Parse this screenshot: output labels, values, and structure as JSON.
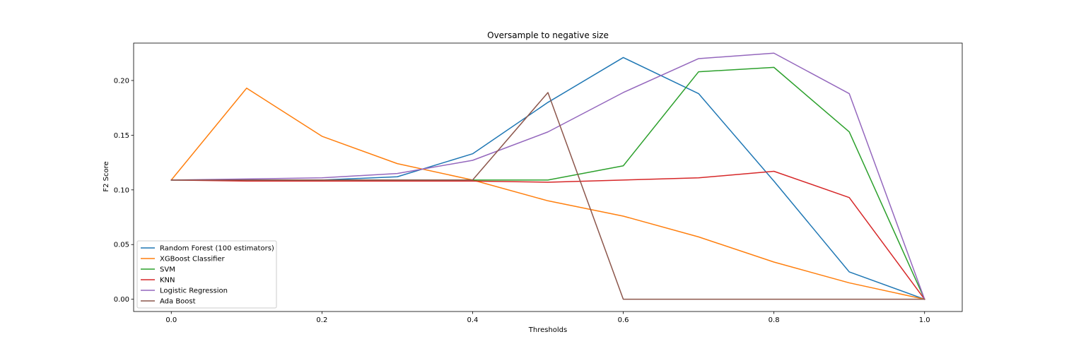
{
  "chart_data": {
    "type": "line",
    "title": "Oversample to negative size",
    "xlabel": "Thresholds",
    "ylabel": "F2 Score",
    "xlim": [
      -0.05,
      1.05
    ],
    "ylim": [
      -0.0112,
      0.2342
    ],
    "xticks": [
      0.0,
      0.2,
      0.4,
      0.6,
      0.8,
      1.0
    ],
    "xtick_labels": [
      "0.0",
      "0.2",
      "0.4",
      "0.6",
      "0.8",
      "1.0"
    ],
    "yticks": [
      0.0,
      0.05,
      0.1,
      0.15,
      0.2
    ],
    "ytick_labels": [
      "0.00",
      "0.05",
      "0.10",
      "0.15",
      "0.20"
    ],
    "grid": false,
    "legend_position": "bottom-left",
    "x": [
      0.0,
      0.1,
      0.2,
      0.3,
      0.4,
      0.5,
      0.6,
      0.7,
      0.8,
      0.9,
      1.0
    ],
    "series": [
      {
        "name": "Random Forest (100 estimators)",
        "color": "#1f77b4",
        "values": [
          0.109,
          0.109,
          0.109,
          0.112,
          0.133,
          0.18,
          0.221,
          0.188,
          0.108,
          0.025,
          0.0
        ]
      },
      {
        "name": "XGBoost Classifier",
        "color": "#ff7f0e",
        "values": [
          0.109,
          0.193,
          0.149,
          0.124,
          0.109,
          0.09,
          0.076,
          0.057,
          0.034,
          0.015,
          0.0
        ]
      },
      {
        "name": "SVM",
        "color": "#2ca02c",
        "values": [
          0.109,
          0.109,
          0.109,
          0.109,
          0.109,
          0.109,
          0.122,
          0.208,
          0.212,
          0.153,
          0.0
        ]
      },
      {
        "name": "KNN",
        "color": "#d62728",
        "values": [
          0.109,
          0.108,
          0.108,
          0.108,
          0.108,
          0.107,
          0.109,
          0.111,
          0.117,
          0.093,
          0.0
        ]
      },
      {
        "name": "Logistic Regression",
        "color": "#9467bd",
        "values": [
          0.109,
          0.11,
          0.111,
          0.115,
          0.127,
          0.153,
          0.189,
          0.22,
          0.225,
          0.188,
          0.0
        ]
      },
      {
        "name": "Ada Boost",
        "color": "#8c564b",
        "values": [
          0.109,
          0.109,
          0.109,
          0.109,
          0.109,
          0.189,
          0.0,
          0.0,
          0.0,
          0.0,
          0.0
        ]
      }
    ]
  }
}
